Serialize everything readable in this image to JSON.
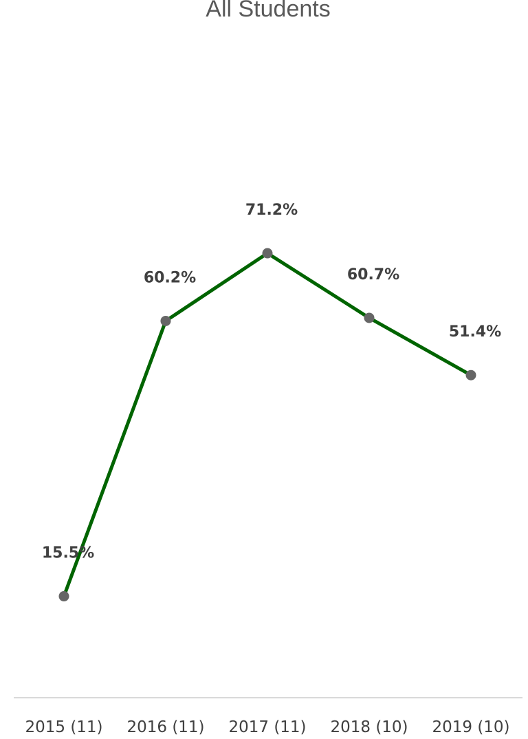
{
  "chart_data": {
    "type": "line",
    "title": "All Students",
    "categories": [
      "2015 (11)",
      "2016 (11)",
      "2017 (11)",
      "2018 (10)",
      "2019 (10)"
    ],
    "series": [
      {
        "values": [
          15.5,
          60.2,
          71.2,
          60.7,
          51.4
        ],
        "data_labels": [
          "15.5%",
          "60.2%",
          "71.2%",
          "60.7%",
          "51.4%"
        ],
        "line_color": "#006400",
        "marker_color": "#666666"
      }
    ],
    "ylim": [
      0,
      100
    ],
    "grid": false,
    "legend": "none",
    "axis_line_color": "#d9d9d9"
  }
}
